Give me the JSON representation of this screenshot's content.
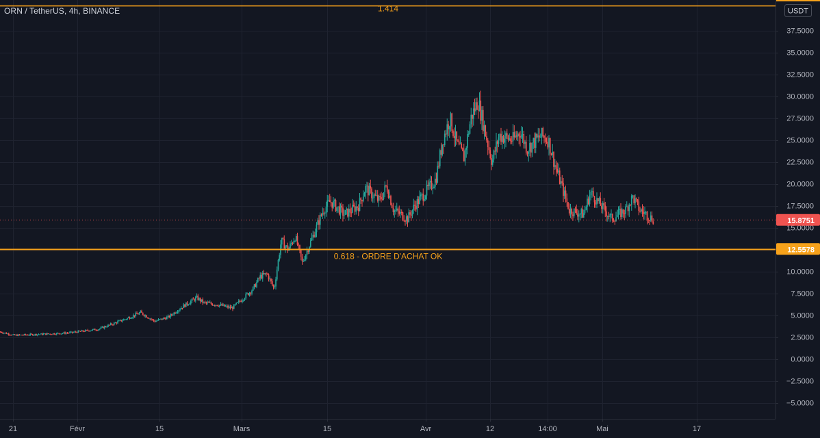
{
  "header": {
    "symbol_title": "ORN / TetherUS, 4h, BINANCE"
  },
  "price_axis": {
    "currency": "USDT",
    "tick_labels": [
      "37.5000",
      "35.0000",
      "32.5000",
      "30.0000",
      "27.5000",
      "25.0000",
      "22.5000",
      "20.0000",
      "17.5000",
      "15.0000",
      "12.5000",
      "10.0000",
      "7.5000",
      "5.0000",
      "2.5000",
      "0.0000",
      "−2.5000",
      "−5.0000"
    ]
  },
  "time_axis": {
    "tick_labels": [
      "21",
      "Févr",
      "15",
      "Mars",
      "15",
      "Avr",
      "12",
      "14:00",
      "Mai",
      "17"
    ]
  },
  "colors": {
    "background": "#131722",
    "grid": "#1f2330",
    "text": "#b2b5be",
    "up": "#26a69a",
    "down": "#ef5350",
    "fib_line": "#f7a21b",
    "price_line": "#ef5350"
  },
  "chart_data": {
    "type": "candlestick",
    "title": "ORN / TetherUS, 4h, BINANCE",
    "ylabel": "USDT",
    "ylim": [
      -6.5,
      40
    ],
    "grid": true,
    "last_price": {
      "value": 15.8751,
      "label": "15.8751"
    },
    "horizontal_levels": [
      {
        "value": 12.5578,
        "label": "12.5578",
        "annotation": "0.618 - ORDRE D'ACHAT OK"
      },
      {
        "value": 40.3,
        "annotation": "1.414"
      }
    ],
    "price_path": [
      [
        "2021-01-19",
        3.1
      ],
      [
        "2021-01-20",
        2.9
      ],
      [
        "2021-01-21",
        2.7
      ],
      [
        "2021-01-24",
        2.8
      ],
      [
        "2021-01-27",
        2.9
      ],
      [
        "2021-01-29",
        3.0
      ],
      [
        "2021-02-02",
        3.4
      ],
      [
        "2021-02-04",
        4.0
      ],
      [
        "2021-02-06",
        4.6
      ],
      [
        "2021-02-08",
        5.3
      ],
      [
        "2021-02-10",
        4.3
      ],
      [
        "2021-02-12",
        4.8
      ],
      [
        "2021-02-14",
        6.0
      ],
      [
        "2021-02-16",
        7.0
      ],
      [
        "2021-02-17",
        6.4
      ],
      [
        "2021-02-19",
        6.2
      ],
      [
        "2021-02-21",
        5.8
      ],
      [
        "2021-02-22",
        6.5
      ],
      [
        "2021-02-24",
        8.0
      ],
      [
        "2021-02-25",
        9.4
      ],
      [
        "2021-02-26",
        9.7
      ],
      [
        "2021-02-27",
        8.0
      ],
      [
        "2021-02-28",
        13.5
      ],
      [
        "2021-03-01",
        12.5
      ],
      [
        "2021-03-02",
        14.0
      ],
      [
        "2021-03-03",
        11.0
      ],
      [
        "2021-03-04",
        13.0
      ],
      [
        "2021-03-05",
        15.0
      ],
      [
        "2021-03-06",
        17.0
      ],
      [
        "2021-03-07",
        18.0
      ],
      [
        "2021-03-09",
        16.5
      ],
      [
        "2021-03-11",
        17.5
      ],
      [
        "2021-03-12",
        19.5
      ],
      [
        "2021-03-14",
        18.0
      ],
      [
        "2021-03-15",
        19.8
      ],
      [
        "2021-03-16",
        17.0
      ],
      [
        "2021-03-18",
        16.0
      ],
      [
        "2021-03-19",
        17.5
      ],
      [
        "2021-03-21",
        19.5
      ],
      [
        "2021-03-22",
        20.5
      ],
      [
        "2021-03-23",
        25.0
      ],
      [
        "2021-03-24",
        27.5
      ],
      [
        "2021-03-25",
        24.5
      ],
      [
        "2021-03-26",
        23.0
      ],
      [
        "2021-03-27",
        27.5
      ],
      [
        "2021-03-28",
        29.5
      ],
      [
        "2021-03-29",
        26.0
      ],
      [
        "2021-03-30",
        22.5
      ],
      [
        "2021-03-31",
        25.5
      ],
      [
        "2021-04-02",
        25.0
      ],
      [
        "2021-04-03",
        26.0
      ],
      [
        "2021-04-04",
        24.0
      ],
      [
        "2021-04-06",
        25.5
      ],
      [
        "2021-04-07",
        25.0
      ],
      [
        "2021-04-08",
        22.0
      ],
      [
        "2021-04-09",
        19.5
      ],
      [
        "2021-04-10",
        17.0
      ],
      [
        "2021-04-12",
        16.5
      ],
      [
        "2021-04-13",
        19.0
      ],
      [
        "2021-04-14",
        18.0
      ],
      [
        "2021-04-15",
        17.0
      ],
      [
        "2021-04-16",
        16.0
      ],
      [
        "2021-04-17",
        16.5
      ],
      [
        "2021-04-18",
        17.0
      ],
      [
        "2021-04-19",
        18.5
      ],
      [
        "2021-04-20",
        17.0
      ],
      [
        "2021-04-21",
        16.5
      ],
      [
        "2021-04-22",
        15.88
      ]
    ]
  }
}
